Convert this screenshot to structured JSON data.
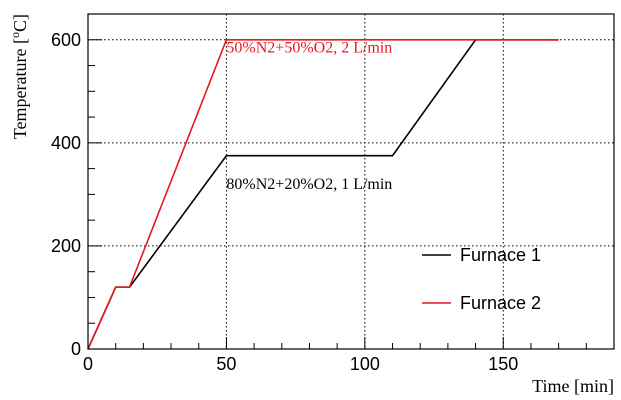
{
  "chart_data": {
    "type": "line",
    "xlabel": "Time [min]",
    "ylabel": "Temperature [oC]",
    "ylabel_parts": {
      "prefix": "Temperature [",
      "sup": "o",
      "suffix": "C]"
    },
    "xlim": [
      0,
      190
    ],
    "ylim": [
      0,
      650
    ],
    "xticks": [
      0,
      50,
      100,
      150
    ],
    "yticks": [
      0,
      200,
      400,
      600
    ],
    "grid": true,
    "legend_position": "lower-right",
    "series": [
      {
        "name": "Furnace 1",
        "color": "#000000",
        "x": [
          0,
          10,
          15,
          50,
          110,
          140,
          170
        ],
        "y": [
          0,
          120,
          120,
          375,
          375,
          600,
          600
        ]
      },
      {
        "name": "Furnace 2",
        "color": "#e8191e",
        "x": [
          0,
          10,
          15,
          50,
          170
        ],
        "y": [
          0,
          120,
          120,
          600,
          600
        ]
      }
    ],
    "annotations": [
      {
        "text": "50%N2+50%O2, 2 L/min",
        "color": "#e8191e",
        "x": 50,
        "y": 575
      },
      {
        "text": "80%N2+20%O2, 1 L/min",
        "color": "#000000",
        "x": 50,
        "y": 310
      }
    ]
  }
}
